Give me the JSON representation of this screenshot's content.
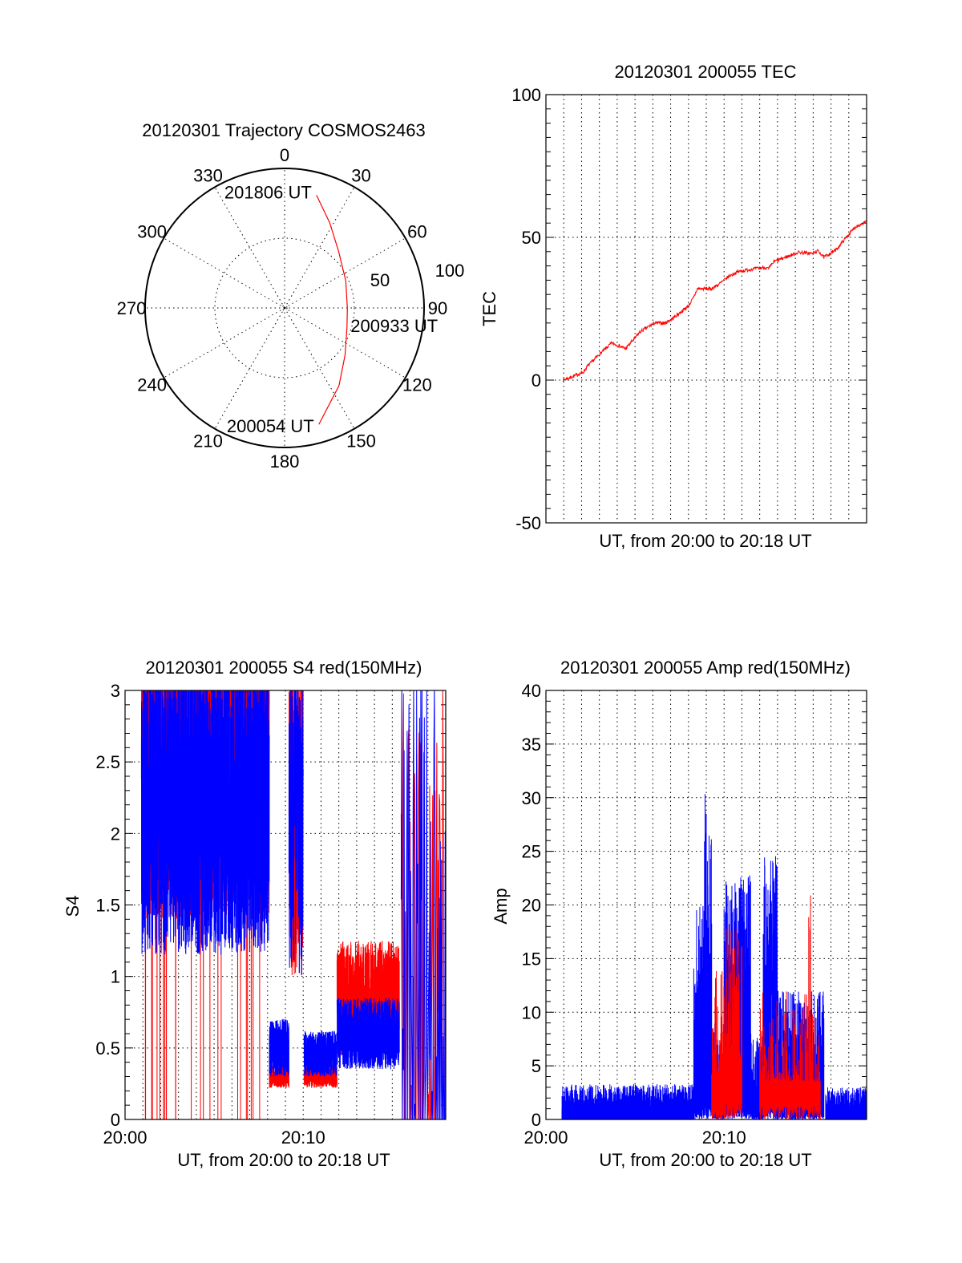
{
  "chart_data": [
    {
      "type": "polar",
      "title": "20120301 Trajectory COSMOS2463",
      "rlim": [
        0,
        100
      ],
      "angle_labels": [
        {
          "angle": 0,
          "label": "0"
        },
        {
          "angle": 30,
          "label": "30"
        },
        {
          "angle": 60,
          "label": "60"
        },
        {
          "angle": 90,
          "label": "90"
        },
        {
          "angle": 120,
          "label": "120"
        },
        {
          "angle": 150,
          "label": "150"
        },
        {
          "angle": 180,
          "label": "180"
        },
        {
          "angle": 210,
          "label": "210"
        },
        {
          "angle": 240,
          "label": "240"
        },
        {
          "angle": 270,
          "label": "270"
        },
        {
          "angle": 300,
          "label": "300"
        },
        {
          "angle": 330,
          "label": "330"
        }
      ],
      "radial_labels": [
        {
          "r": 50,
          "label": "50"
        },
        {
          "r": 100,
          "label": "100"
        }
      ],
      "trajectory": {
        "color": "#ff0000",
        "points": [
          [
            163.6,
            87
          ],
          [
            145,
            68
          ],
          [
            128,
            55
          ],
          [
            108,
            47
          ],
          [
            90,
            45
          ],
          [
            66,
            48
          ],
          [
            43.8,
            56
          ],
          [
            28,
            69
          ],
          [
            15.8,
            84
          ]
        ]
      },
      "annotations": [
        {
          "text": "201806 UT",
          "az": 15.8,
          "r": 84
        },
        {
          "text": "200933 UT",
          "az": 90,
          "r": 45
        },
        {
          "text": "200054 UT",
          "az": 163.6,
          "r": 87
        }
      ]
    },
    {
      "type": "line",
      "title": "20120301 200055 TEC",
      "xlabel": "UT, from 20:00 to 20:18 UT",
      "ylabel": "TEC",
      "xlim": [
        0,
        18
      ],
      "ylim": [
        -50,
        100
      ],
      "yticks": [
        {
          "value": 100,
          "label": "100"
        },
        {
          "value": 50,
          "label": "50"
        },
        {
          "value": 0,
          "label": "0"
        },
        {
          "value": -50,
          "label": "-50"
        }
      ],
      "xticks": [],
      "series": [
        {
          "name": "TEC",
          "color": "#ff0000",
          "x": [
            0.95,
            1.08,
            1.5,
            2.1,
            2.35,
            3.0,
            3.7,
            4.1,
            4.46,
            4.9,
            5.3,
            6.1,
            6.7,
            7.2,
            8.0,
            8.3,
            8.5,
            9.3,
            9.8,
            10.3,
            10.8,
            11.4,
            12.25,
            12.5,
            12.8,
            13.6,
            14.2,
            14.95,
            15.3,
            15.6,
            16.3,
            16.85,
            17.4,
            18.0
          ],
          "y": [
            0,
            0.3,
            1.2,
            2.8,
            5,
            9,
            13,
            12,
            11,
            14,
            17,
            20,
            20,
            22,
            26,
            29,
            32,
            32,
            34,
            36.5,
            38,
            38.7,
            39.5,
            39,
            41.5,
            43.4,
            44.8,
            44.3,
            45.3,
            43,
            45.7,
            50,
            53.8,
            55.5
          ]
        }
      ]
    },
    {
      "type": "line",
      "title": "20120301 200055 S4 red(150MHz)",
      "xlabel": "UT, from 20:00 to 20:18 UT",
      "ylabel": "S4",
      "xlim": [
        0,
        18
      ],
      "ylim": [
        0,
        3
      ],
      "yticks": [
        {
          "value": 3,
          "label": "3"
        },
        {
          "value": 2.5,
          "label": "2.5"
        },
        {
          "value": 2,
          "label": "2"
        },
        {
          "value": 1.5,
          "label": "1.5"
        },
        {
          "value": 1,
          "label": "1"
        },
        {
          "value": 0.5,
          "label": "0.5"
        },
        {
          "value": 0,
          "label": "0"
        }
      ],
      "xticks": [
        {
          "value": 0,
          "label": "20:00"
        },
        {
          "value": 10,
          "label": "20:10"
        }
      ],
      "series": [
        {
          "name": "red",
          "color": "#ff0000",
          "segments": [
            {
              "t": [
                0.92,
                8.1
              ],
              "range": [
                1.4,
                3.6
              ],
              "drops": 0.012,
              "density": 60
            },
            {
              "t": [
                8.1,
                9.2
              ],
              "range": [
                0.22,
                0.38
              ],
              "drops": 0,
              "density": 60
            },
            {
              "t": [
                9.2,
                10.0
              ],
              "range": [
                1.0,
                3.4
              ],
              "drops": 0,
              "density": 40
            },
            {
              "t": [
                10.05,
                11.9
              ],
              "range": [
                0.22,
                0.38
              ],
              "drops": 0,
              "density": 60
            },
            {
              "t": [
                11.9,
                15.4
              ],
              "range": [
                0.45,
                1.25
              ],
              "drops": 0,
              "density": 60
            },
            {
              "t": [
                15.5,
                18.0
              ],
              "range": [
                0,
                3.2
              ],
              "drops": 0.3,
              "density": 6
            }
          ]
        },
        {
          "name": "blue",
          "color": "#0000ff",
          "segments": [
            {
              "t": [
                0.92,
                8.1
              ],
              "range": [
                1.15,
                3.2
              ],
              "drops": 0,
              "density": 60
            },
            {
              "t": [
                8.1,
                9.2
              ],
              "range": [
                0.3,
                0.7
              ],
              "drops": 0,
              "density": 60
            },
            {
              "t": [
                9.2,
                10.0
              ],
              "range": [
                1.0,
                3.2
              ],
              "drops": 0,
              "density": 30
            },
            {
              "t": [
                10.05,
                11.9
              ],
              "range": [
                0.3,
                0.62
              ],
              "drops": 0,
              "density": 60
            },
            {
              "t": [
                11.9,
                15.4
              ],
              "range": [
                0.35,
                0.85
              ],
              "drops": 0,
              "density": 60
            },
            {
              "t": [
                15.5,
                18.0
              ],
              "range": [
                0,
                3.2
              ],
              "drops": 0.3,
              "density": 6
            }
          ]
        }
      ]
    },
    {
      "type": "bar",
      "title": "20120301 200055 Amp red(150MHz)",
      "xlabel": "UT, from 20:00 to 20:18 UT",
      "ylabel": "Amp",
      "xlim": [
        0,
        18
      ],
      "ylim": [
        0,
        40
      ],
      "yticks": [
        {
          "value": 40,
          "label": "40"
        },
        {
          "value": 35,
          "label": "35"
        },
        {
          "value": 30,
          "label": "30"
        },
        {
          "value": 25,
          "label": "25"
        },
        {
          "value": 20,
          "label": "20"
        },
        {
          "value": 15,
          "label": "15"
        },
        {
          "value": 10,
          "label": "10"
        },
        {
          "value": 5,
          "label": "5"
        },
        {
          "value": 0,
          "label": "0"
        }
      ],
      "xticks": [
        {
          "value": 0,
          "label": "20:00"
        },
        {
          "value": 10,
          "label": "20:10"
        }
      ],
      "series": [
        {
          "name": "blue",
          "color": "#0000ff",
          "segments": [
            {
              "t": [
                0.9,
                8.3
              ],
              "peak": 3.3,
              "density": 60
            },
            {
              "t": [
                8.3,
                8.9
              ],
              "peak": 20,
              "density": 60
            },
            {
              "t": [
                8.9,
                9.3
              ],
              "peak": 30.5,
              "density": 60
            },
            {
              "t": [
                9.3,
                10.0
              ],
              "peak": 9,
              "density": 40
            },
            {
              "t": [
                10.0,
                11.5
              ],
              "peak": 23,
              "density": 60
            },
            {
              "t": [
                11.5,
                12.2
              ],
              "peak": 8,
              "density": 50
            },
            {
              "t": [
                12.2,
                13.0
              ],
              "peak": 25,
              "density": 60
            },
            {
              "t": [
                13.0,
                15.6
              ],
              "peak": 12,
              "density": 60
            },
            {
              "t": [
                15.7,
                18.0
              ],
              "peak": 3,
              "density": 60
            }
          ]
        },
        {
          "name": "red",
          "color": "#ff0000",
          "segments": [
            {
              "t": [
                9.3,
                10.0
              ],
              "peak": 14,
              "density": 25
            },
            {
              "t": [
                10.0,
                11.0
              ],
              "peak": 18.5,
              "density": 30
            },
            {
              "t": [
                12.0,
                15.4
              ],
              "peak": 12,
              "density": 10
            },
            {
              "t": [
                14.75,
                14.85
              ],
              "peak": 26,
              "density": 20
            }
          ]
        }
      ]
    }
  ]
}
